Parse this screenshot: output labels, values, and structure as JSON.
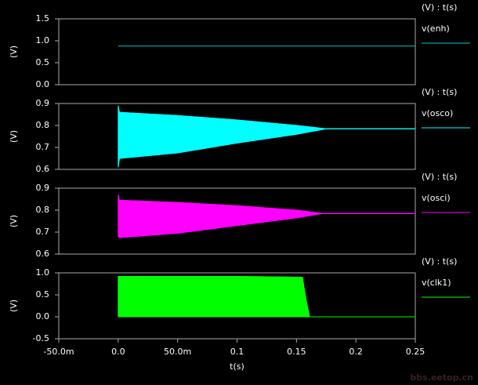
{
  "chart_data": [
    {
      "type": "line",
      "ylabel": "(V)",
      "legend_header": "(V) : t(s)",
      "xlim": [
        -0.05,
        0.25
      ],
      "ylim": [
        0,
        1.5
      ],
      "yticks": [
        {
          "value": 0,
          "label": "0.0"
        },
        0.5,
        {
          "value": 1,
          "label": "1.0"
        },
        1.5
      ],
      "x": [
        0,
        0.25
      ],
      "series": [
        {
          "name": "v(enh)",
          "color": "#00c8c8",
          "values": [
            0.88,
            0.88
          ]
        }
      ]
    },
    {
      "type": "band",
      "ylabel": "(V)",
      "legend_header": "(V) : t(s)",
      "xlim": [
        -0.05,
        0.25
      ],
      "ylim": [
        0.6,
        0.9
      ],
      "yticks": [
        0.6,
        0.7,
        0.8,
        0.9
      ],
      "x": [
        0,
        0.001,
        0.05,
        0.1,
        0.15,
        0.175,
        0.25
      ],
      "series": [
        {
          "name": "v(osco)",
          "color": "#00ffff",
          "high": [
            0.89,
            0.86,
            0.845,
            0.825,
            0.8,
            0.785,
            0.785
          ],
          "low": [
            0.61,
            0.65,
            0.675,
            0.72,
            0.76,
            0.785,
            0.785
          ]
        }
      ]
    },
    {
      "type": "band",
      "ylabel": "(V)",
      "legend_header": "(V) : t(s)",
      "xlim": [
        -0.05,
        0.25
      ],
      "ylim": [
        0.6,
        0.9
      ],
      "yticks": [
        0.6,
        0.7,
        0.8,
        0.9
      ],
      "x": [
        0,
        0.001,
        0.05,
        0.1,
        0.15,
        0.172,
        0.25
      ],
      "series": [
        {
          "name": "v(osci)",
          "color": "#ff00ff",
          "high": [
            0.87,
            0.845,
            0.835,
            0.82,
            0.8,
            0.785,
            0.785
          ],
          "low": [
            0.68,
            0.675,
            0.695,
            0.73,
            0.765,
            0.785,
            0.785
          ]
        }
      ]
    },
    {
      "type": "band",
      "ylabel": "(V)",
      "legend_header": "(V) : t(s)",
      "xlabel": "t(s)",
      "xlim": [
        -0.05,
        0.25
      ],
      "ylim": [
        -0.5,
        1.0
      ],
      "yticks": [
        -0.5,
        {
          "value": 0,
          "label": "0.0"
        },
        0.5,
        {
          "value": 1,
          "label": "1.0"
        }
      ],
      "xticks": [
        {
          "value": -0.05,
          "label": "-50.0m"
        },
        {
          "value": 0,
          "label": "0.0"
        },
        {
          "value": 0.05,
          "label": "50.0m"
        },
        0.1,
        0.15,
        0.2,
        0.25
      ],
      "x": [
        0,
        0.1,
        0.155,
        0.158,
        0.161,
        0.25
      ],
      "series": [
        {
          "name": "v(clk1)",
          "color": "#00ff00",
          "high": [
            0.92,
            0.92,
            0.9,
            0.4,
            0.0,
            0.0
          ],
          "low": [
            0.0,
            0.0,
            0.0,
            0.0,
            0.0,
            0.0
          ]
        }
      ]
    }
  ],
  "watermark": "bbs.eetop.cn"
}
